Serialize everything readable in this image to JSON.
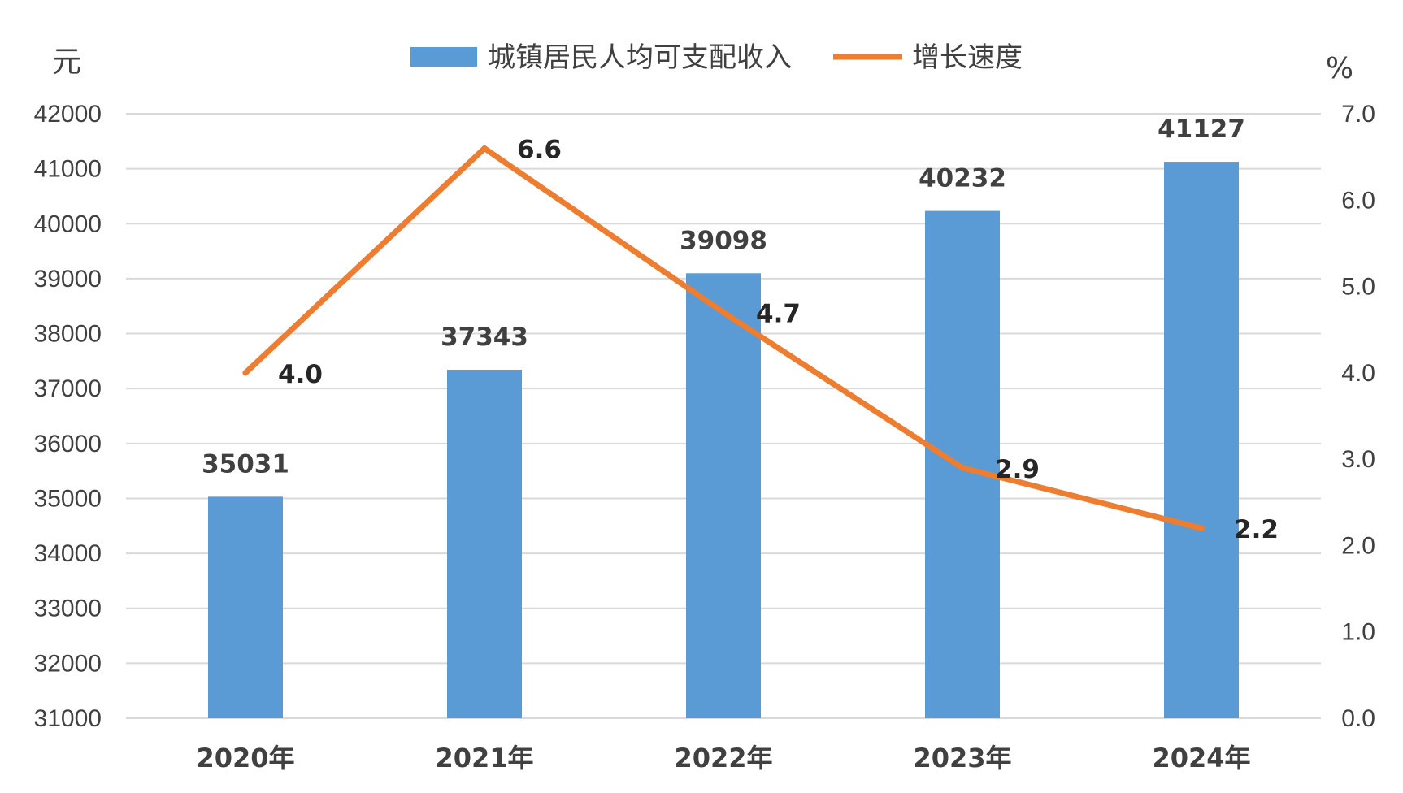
{
  "chart_data": {
    "type": "bar",
    "categories": [
      "2020年",
      "2021年",
      "2022年",
      "2023年",
      "2024年"
    ],
    "series": [
      {
        "name": "城镇居民人均可支配收入",
        "type": "bar",
        "axis": "left",
        "values": [
          35031,
          37343,
          39098,
          40232,
          41127
        ],
        "color": "#5b9bd5"
      },
      {
        "name": "增长速度",
        "type": "line",
        "axis": "right",
        "values": [
          4.0,
          6.6,
          4.7,
          2.9,
          2.2
        ],
        "color": "#ed7d31"
      }
    ],
    "bar_labels": [
      "35031",
      "37343",
      "39098",
      "40232",
      "41127"
    ],
    "line_labels": [
      "4.0",
      "6.6",
      "4.7",
      "2.9",
      "2.2"
    ],
    "ylabel_left": "元",
    "ylabel_right": "%",
    "ylim_left": [
      31000,
      42000
    ],
    "ylim_right": [
      0.0,
      7.0
    ],
    "y_ticks_left": [
      "31000",
      "32000",
      "33000",
      "34000",
      "35000",
      "36000",
      "37000",
      "38000",
      "39000",
      "40000",
      "41000",
      "42000"
    ],
    "y_ticks_right": [
      "0.0",
      "1.0",
      "2.0",
      "3.0",
      "4.0",
      "5.0",
      "6.0",
      "7.0"
    ],
    "grid": true,
    "legend_position": "top-center"
  }
}
